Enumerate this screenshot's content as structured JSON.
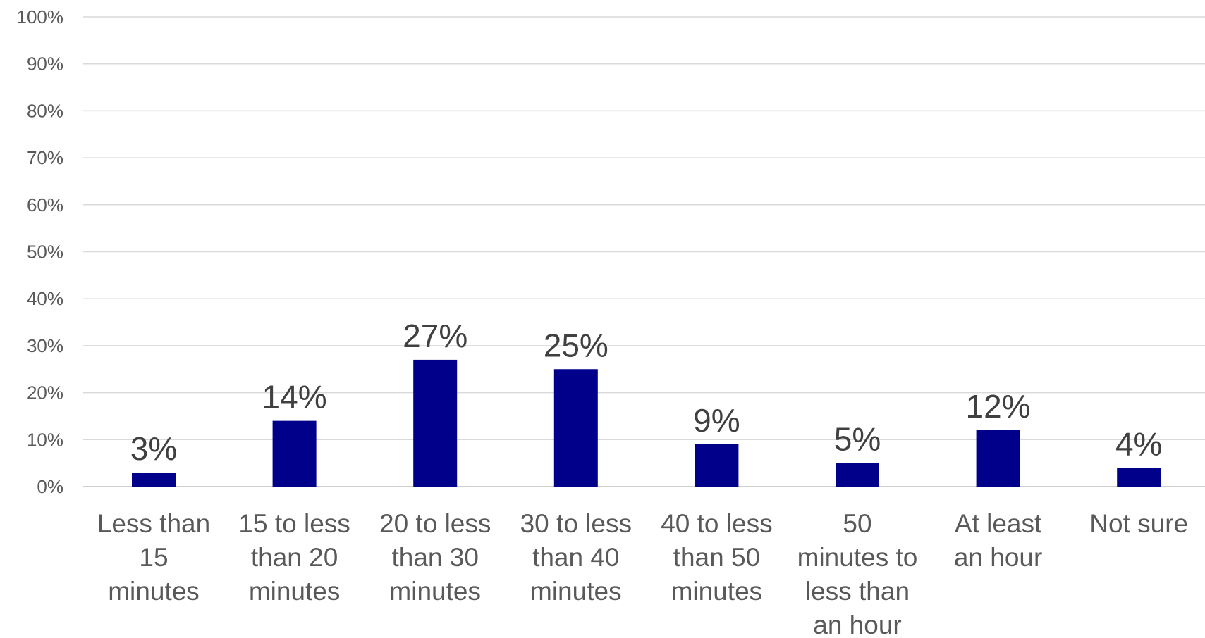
{
  "chart_data": {
    "type": "bar",
    "title": "",
    "xlabel": "",
    "ylabel": "",
    "ylim": [
      0,
      100
    ],
    "grid": true,
    "legend": "none",
    "bar_color": "#00008B",
    "y_ticks": [
      "0%",
      "10%",
      "20%",
      "30%",
      "40%",
      "50%",
      "60%",
      "70%",
      "80%",
      "90%",
      "100%"
    ],
    "categories": [
      "Less than 15 minutes",
      "15 to less than 20 minutes",
      "20 to less than 30 minutes",
      "30 to less than 40 minutes",
      "40 to less than 50 minutes",
      "50 minutes to less than an hour",
      "At least an hour",
      "Not sure"
    ],
    "category_lines": [
      [
        "Less than",
        "15",
        "minutes"
      ],
      [
        "15 to less",
        "than 20",
        "minutes"
      ],
      [
        "20 to less",
        "than 30",
        "minutes"
      ],
      [
        "30 to less",
        "than 40",
        "minutes"
      ],
      [
        "40 to less",
        "than 50",
        "minutes"
      ],
      [
        "50",
        "minutes to",
        "less than",
        "an hour"
      ],
      [
        "At least",
        "an hour"
      ],
      [
        "Not sure"
      ]
    ],
    "values": [
      3,
      14,
      27,
      25,
      9,
      5,
      12,
      4
    ],
    "data_labels": [
      "3%",
      "14%",
      "27%",
      "25%",
      "9%",
      "5%",
      "12%",
      "4%"
    ]
  }
}
